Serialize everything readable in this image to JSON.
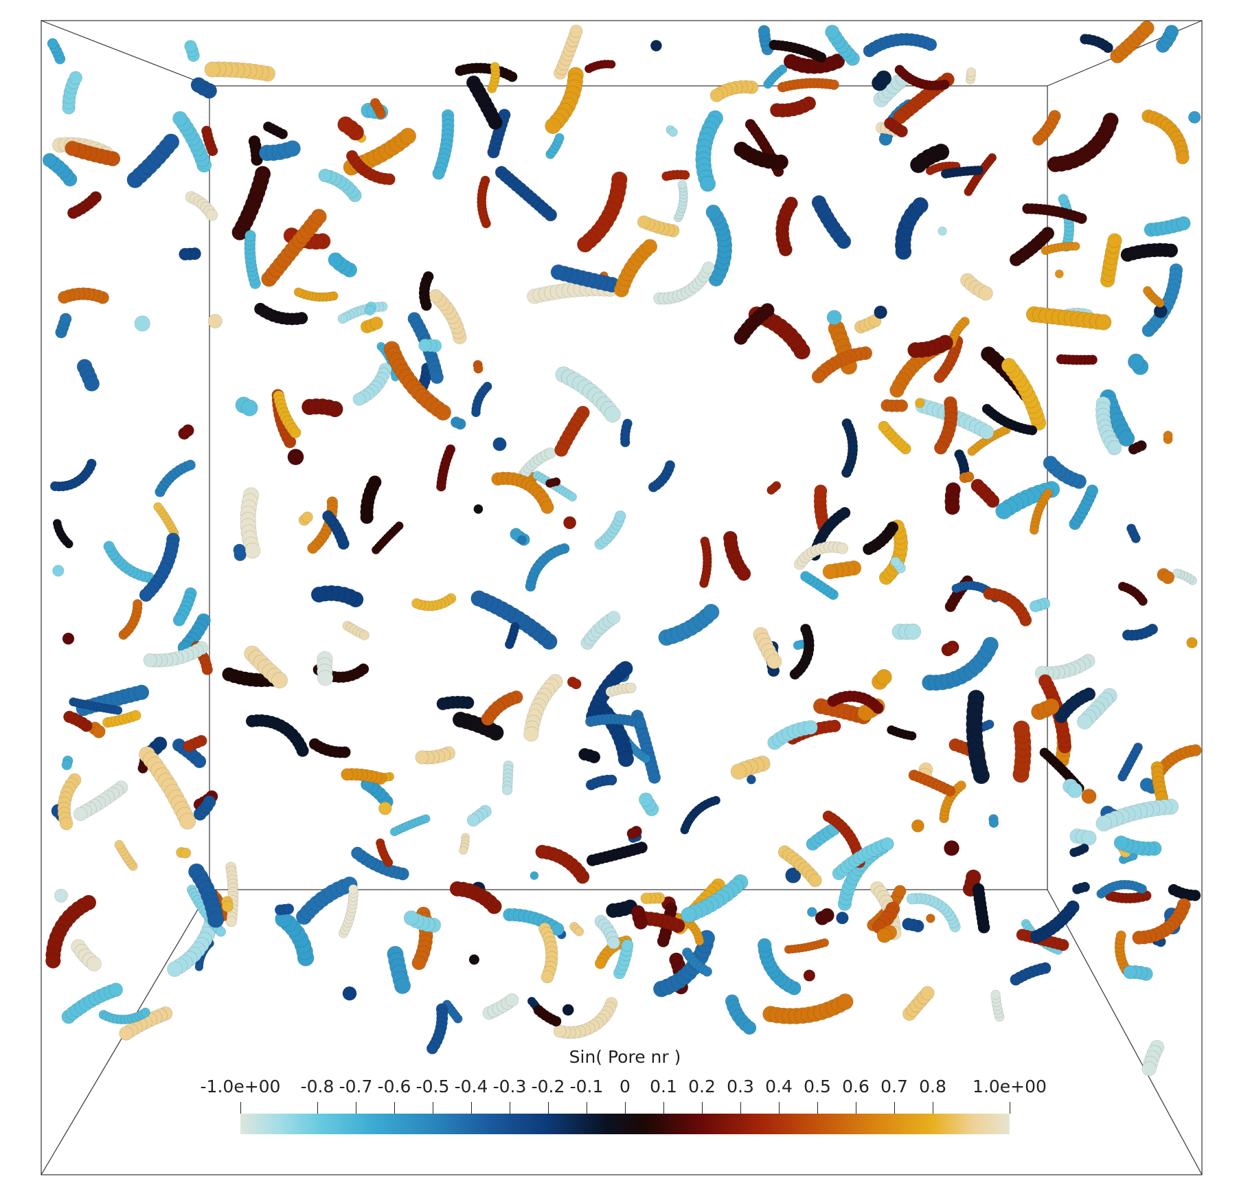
{
  "colorbar": {
    "title": "Sin( Pore nr )",
    "range": [
      -1.0,
      1.0
    ],
    "ticks": [
      {
        "value": -1.0,
        "label": "-1.0e+00"
      },
      {
        "value": -0.8,
        "label": "-0.8"
      },
      {
        "value": -0.7,
        "label": "-0.7"
      },
      {
        "value": -0.6,
        "label": "-0.6"
      },
      {
        "value": -0.5,
        "label": "-0.5"
      },
      {
        "value": -0.4,
        "label": "-0.4"
      },
      {
        "value": -0.3,
        "label": "-0.3"
      },
      {
        "value": -0.2,
        "label": "-0.2"
      },
      {
        "value": -0.1,
        "label": "-0.1"
      },
      {
        "value": 0.0,
        "label": "0"
      },
      {
        "value": 0.1,
        "label": "0.1"
      },
      {
        "value": 0.2,
        "label": "0.2"
      },
      {
        "value": 0.3,
        "label": "0.3"
      },
      {
        "value": 0.4,
        "label": "0.4"
      },
      {
        "value": 0.5,
        "label": "0.5"
      },
      {
        "value": 0.6,
        "label": "0.6"
      },
      {
        "value": 0.7,
        "label": "0.7"
      },
      {
        "value": 0.8,
        "label": "0.8"
      },
      {
        "value": 1.0,
        "label": "1.0e+00"
      }
    ],
    "colormap": [
      {
        "value": -1.0,
        "color": "#dce6dd"
      },
      {
        "value": -0.9,
        "color": "#a4dde8"
      },
      {
        "value": -0.8,
        "color": "#6bcbe0"
      },
      {
        "value": -0.65,
        "color": "#3aaad2"
      },
      {
        "value": -0.5,
        "color": "#2a86bd"
      },
      {
        "value": -0.35,
        "color": "#1a5a9e"
      },
      {
        "value": -0.2,
        "color": "#0c3a78"
      },
      {
        "value": -0.05,
        "color": "#0a1222"
      },
      {
        "value": 0.05,
        "color": "#1c0806"
      },
      {
        "value": 0.2,
        "color": "#6a0a08"
      },
      {
        "value": 0.35,
        "color": "#a32508"
      },
      {
        "value": 0.5,
        "color": "#c4530c"
      },
      {
        "value": 0.65,
        "color": "#d98410"
      },
      {
        "value": 0.8,
        "color": "#e8b020"
      },
      {
        "value": 0.9,
        "color": "#efd090"
      },
      {
        "value": 1.0,
        "color": "#e8e4d0"
      }
    ]
  },
  "scene_colors": {
    "background": "#ffffff",
    "bounding_box": "#333333"
  }
}
